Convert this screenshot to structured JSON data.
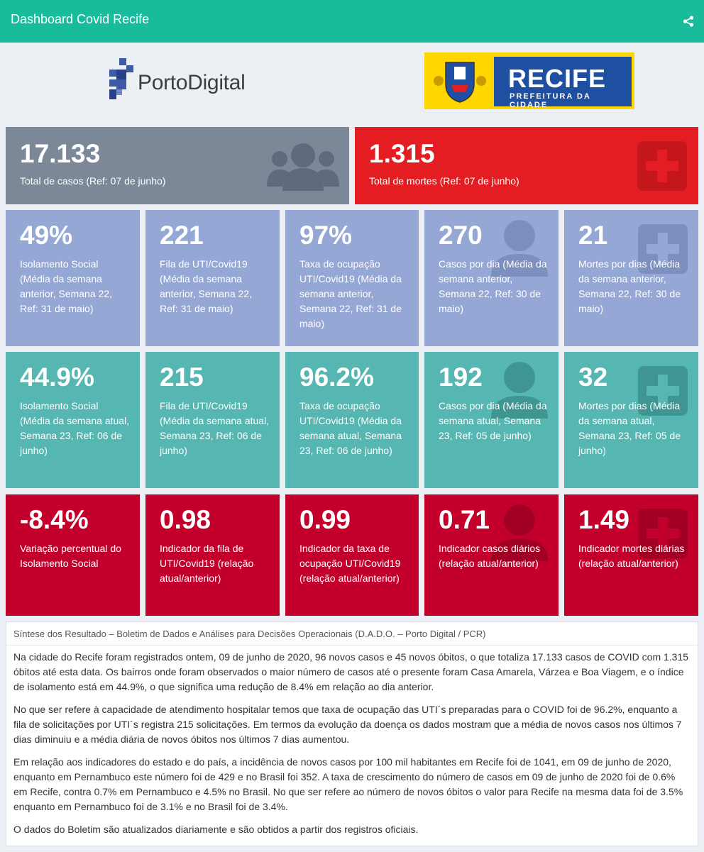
{
  "header": {
    "title": "Dashboard Covid Recife"
  },
  "logos": {
    "porto_digital": "PortoDigital",
    "recife_title": "RECIFE",
    "recife_subtitle": "PREFEITURA DA CIDADE"
  },
  "totals": {
    "cases": {
      "value": "17.133",
      "label": "Total de casos (Ref: 07 de junho)",
      "icon": "group-icon"
    },
    "deaths": {
      "value": "1.315",
      "label": "Total de mortes (Ref: 07 de junho)",
      "icon": "plus-square-icon"
    }
  },
  "previous_week": [
    {
      "value": "49%",
      "label": "Isolamento Social (Média da semana anterior, Semana 22, Ref: 31 de maio)"
    },
    {
      "value": "221",
      "label": "Fila de UTI/Covid19 (Média da semana anterior, Semana 22, Ref: 31 de maio)"
    },
    {
      "value": "97%",
      "label": "Taxa de ocupação UTI/Covid19 (Média da semana anterior, Semana 22, Ref: 31 de maio)"
    },
    {
      "value": "270",
      "label": "Casos por dia (Média da semana anterior, Semana 22, Ref: 30 de maio)",
      "icon": "user-icon"
    },
    {
      "value": "21",
      "label": "Mortes por dias (Média da semana anterior, Semana 22, Ref: 30 de maio)",
      "icon": "plus-square-icon"
    }
  ],
  "current_week": [
    {
      "value": "44.9%",
      "label": "Isolamento Social (Média da semana atual, Semana 23, Ref: 06 de junho)"
    },
    {
      "value": "215",
      "label": "Fila de UTI/Covid19 (Média da semana atual, Semana 23, Ref: 06 de junho)"
    },
    {
      "value": "96.2%",
      "label": "Taxa de ocupação UTI/Covid19 (Média da semana atual, Semana 23, Ref: 06 de junho)"
    },
    {
      "value": "192",
      "label": "Casos por dia (Média da semana atual, Semana 23, Ref: 05 de junho)",
      "icon": "user-icon"
    },
    {
      "value": "32",
      "label": "Mortes por dias (Média da semana atual, Semana 23, Ref: 05 de junho)",
      "icon": "plus-square-icon"
    }
  ],
  "indicators": [
    {
      "value": "-8.4%",
      "label": "Variação percentual do Isolamento Social"
    },
    {
      "value": "0.98",
      "label": "Indicador da fila de UTI/Covid19 (relação atual/anterior)"
    },
    {
      "value": "0.99",
      "label": "Indicador da taxa de ocupação UTI/Covid19 (relação atual/anterior)"
    },
    {
      "value": "0.71",
      "label": "Indicador casos diários (relação atual/anterior)",
      "icon": "user-icon"
    },
    {
      "value": "1.49",
      "label": "Indicador mortes diárias (relação atual/anterior)",
      "icon": "plus-square-icon"
    }
  ],
  "summary": {
    "title": "Síntese dos Resultado – Boletim de Dados e Análises para Decisões Operacionais (D.A.D.O. – Porto Digital / PCR)",
    "paragraphs": [
      "Na cidade do Recife foram registrados ontem, 09 de junho de 2020, 96 novos casos e 45 novos óbitos, o que totaliza 17.133 casos de COVID com 1.315 óbitos até esta data. Os bairros onde foram observados o maior número de casos até o presente foram Casa Amarela, Várzea e Boa Viagem, e o índice de isolamento está em 44.9%, o que significa uma redução de 8.4% em relação ao dia anterior.",
      "No que ser refere à capacidade de atendimento hospitalar temos que taxa de ocupação das UTI´s preparadas para o COVID foi de 96.2%, enquanto a fila de solicitações por UTI´s registra 215 solicitações. Em termos da evolução da doença os dados mostram que a média de novos casos nos últimos 7 dias diminuiu e a média diária de novos óbitos nos últimos 7 dias aumentou.",
      "Em relação aos indicadores do estado e do país, a incidência de novos casos por 100 mil habitantes em Recife foi de 1041, em 09 de junho de 2020, enquanto em Pernambuco este número foi de 429 e no Brasil foi 352. A taxa de crescimento do número de casos em 09 de junho de 2020 foi de 0.6% em Recife, contra 0.7% em Pernambuco e 4.5% no Brasil. No que ser refere ao número de novos óbitos o valor para Recife na mesma data foi de 3.5% enquanto em Pernambuco foi de 3.1% e no Brasil foi de 3.4%.",
      "O dados do Boletim são atualizados diariamente e são obtidos a partir dos registros oficiais."
    ]
  },
  "colors": {
    "header": "#18bc9c",
    "gray": "#7c8897",
    "red": "#e41d22",
    "lavender": "#95a7d5",
    "teal": "#55b6b2",
    "crimson": "#c3002c"
  }
}
